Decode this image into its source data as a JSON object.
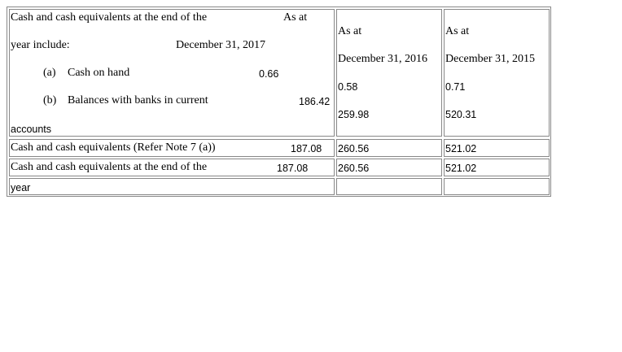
{
  "header": {
    "line1": "Cash and cash equivalents at the end of the",
    "as_at_1": "As at",
    "line2": "year include:",
    "date_1": "December 31, 2017",
    "as_at_2": "As at",
    "date_2": "December 31, 2016",
    "as_at_3": "As at",
    "date_3": "December 31, 2015"
  },
  "items": {
    "a_label": "(a)",
    "a_text": "Cash on hand",
    "a_2017": "0.66",
    "a_2016": "0.58",
    "a_2015": "0.71",
    "b_label": "(b)",
    "b_text": "Balances with banks in current",
    "b_text_cont": "accounts",
    "b_2017": "186.42",
    "b_2016": "259.98",
    "b_2015": "520.31"
  },
  "rows": {
    "r1_label": "Cash and cash equivalents (Refer Note 7 (a))",
    "r1_2017": "187.08",
    "r1_2016": "260.56",
    "r1_2015": "521.02",
    "r2_label": "Cash and cash equivalents at the end of the",
    "r2_label_cont": "year",
    "r2_2017": "187.08",
    "r2_2016": "260.56",
    "r2_2015": "521.02"
  }
}
